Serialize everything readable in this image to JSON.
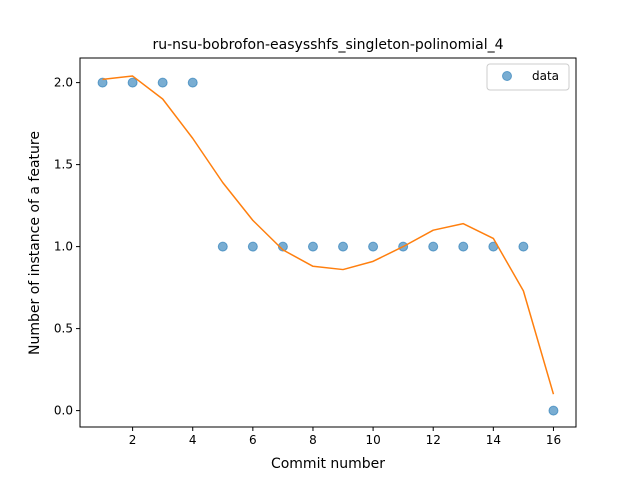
{
  "chart_data": {
    "type": "scatter",
    "title": "ru-nsu-bobrofon-easysshfs_singleton-polinomial_4",
    "xlabel": "Commit number",
    "ylabel": "Number of instance of a feature",
    "xlim": [
      0.25,
      16.75
    ],
    "ylim": [
      -0.1,
      2.15
    ],
    "x_ticks": [
      2,
      4,
      6,
      8,
      10,
      12,
      14,
      16
    ],
    "y_ticks": [
      0.0,
      0.5,
      1.0,
      1.5,
      2.0
    ],
    "x_tick_labels": [
      "2",
      "4",
      "6",
      "8",
      "10",
      "12",
      "14",
      "16"
    ],
    "y_tick_labels": [
      "0.0",
      "0.5",
      "1.0",
      "1.5",
      "2.0"
    ],
    "grid": false,
    "legend_position": "top-right",
    "legend": {
      "data_label": "data"
    },
    "series": [
      {
        "name": "data",
        "kind": "scatter",
        "color": "#1f77b4",
        "x": [
          1,
          2,
          3,
          4,
          5,
          6,
          7,
          8,
          9,
          10,
          11,
          12,
          13,
          14,
          15,
          16
        ],
        "y": [
          2,
          2,
          2,
          2,
          1,
          1,
          1,
          1,
          1,
          1,
          1,
          1,
          1,
          1,
          1,
          0
        ]
      },
      {
        "kind": "line",
        "color": "#ff7f0e",
        "x": [
          1,
          2,
          3,
          4,
          5,
          6,
          7,
          8,
          9,
          10,
          11,
          12,
          13,
          14,
          15,
          16
        ],
        "y": [
          2.02,
          2.04,
          1.9,
          1.66,
          1.39,
          1.16,
          0.98,
          0.88,
          0.86,
          0.91,
          1.0,
          1.1,
          1.14,
          1.05,
          0.73,
          0.1
        ]
      }
    ]
  }
}
